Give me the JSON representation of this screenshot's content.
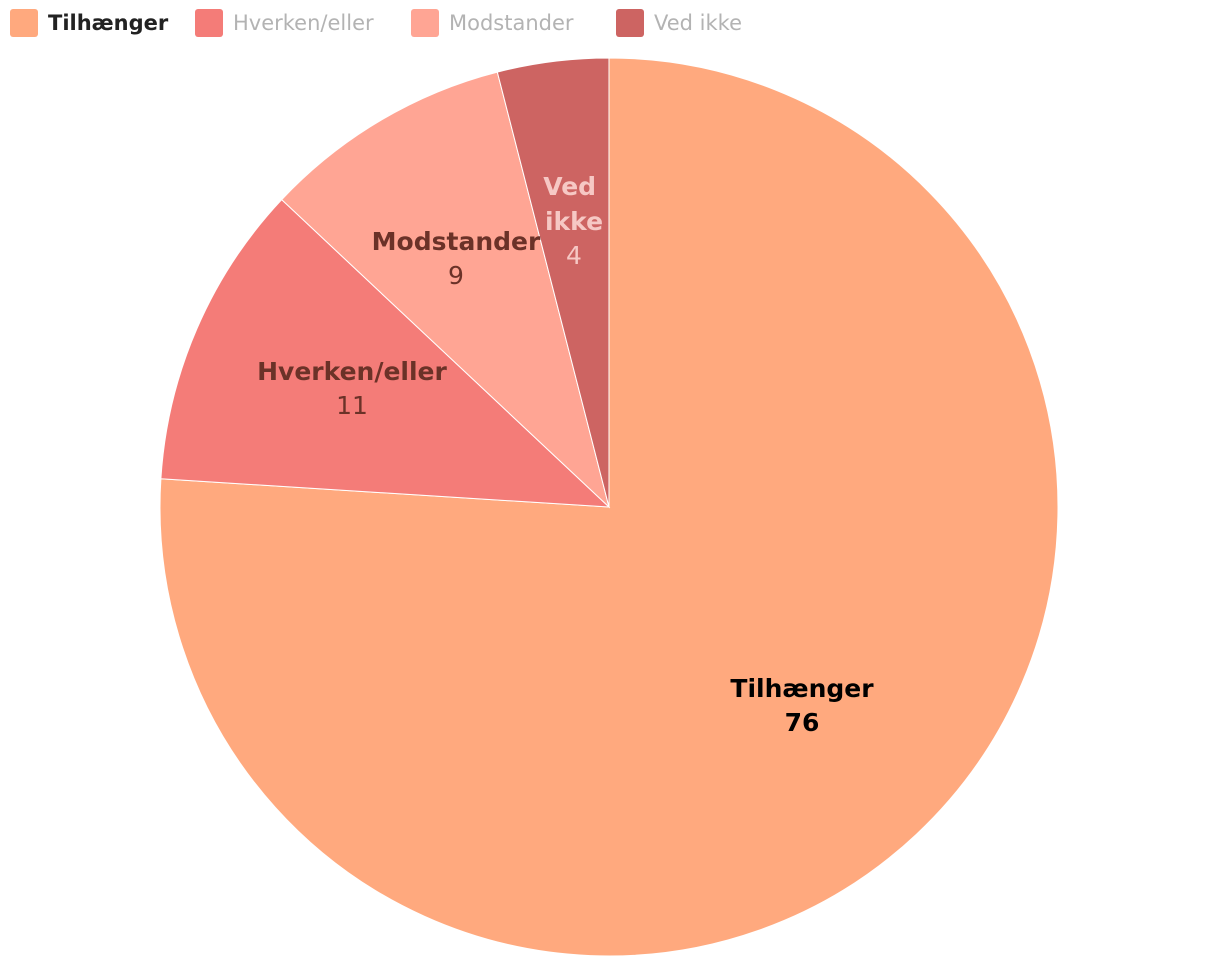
{
  "chart_data": {
    "type": "pie",
    "categories": [
      "Tilhænger",
      "Hverken/eller",
      "Modstander",
      "Ved ikke"
    ],
    "values": [
      76,
      11,
      9,
      4
    ],
    "colors": [
      "#ffa97e",
      "#f47c78",
      "#ffa594",
      "#cd6462"
    ],
    "legend": "top-left"
  }
}
